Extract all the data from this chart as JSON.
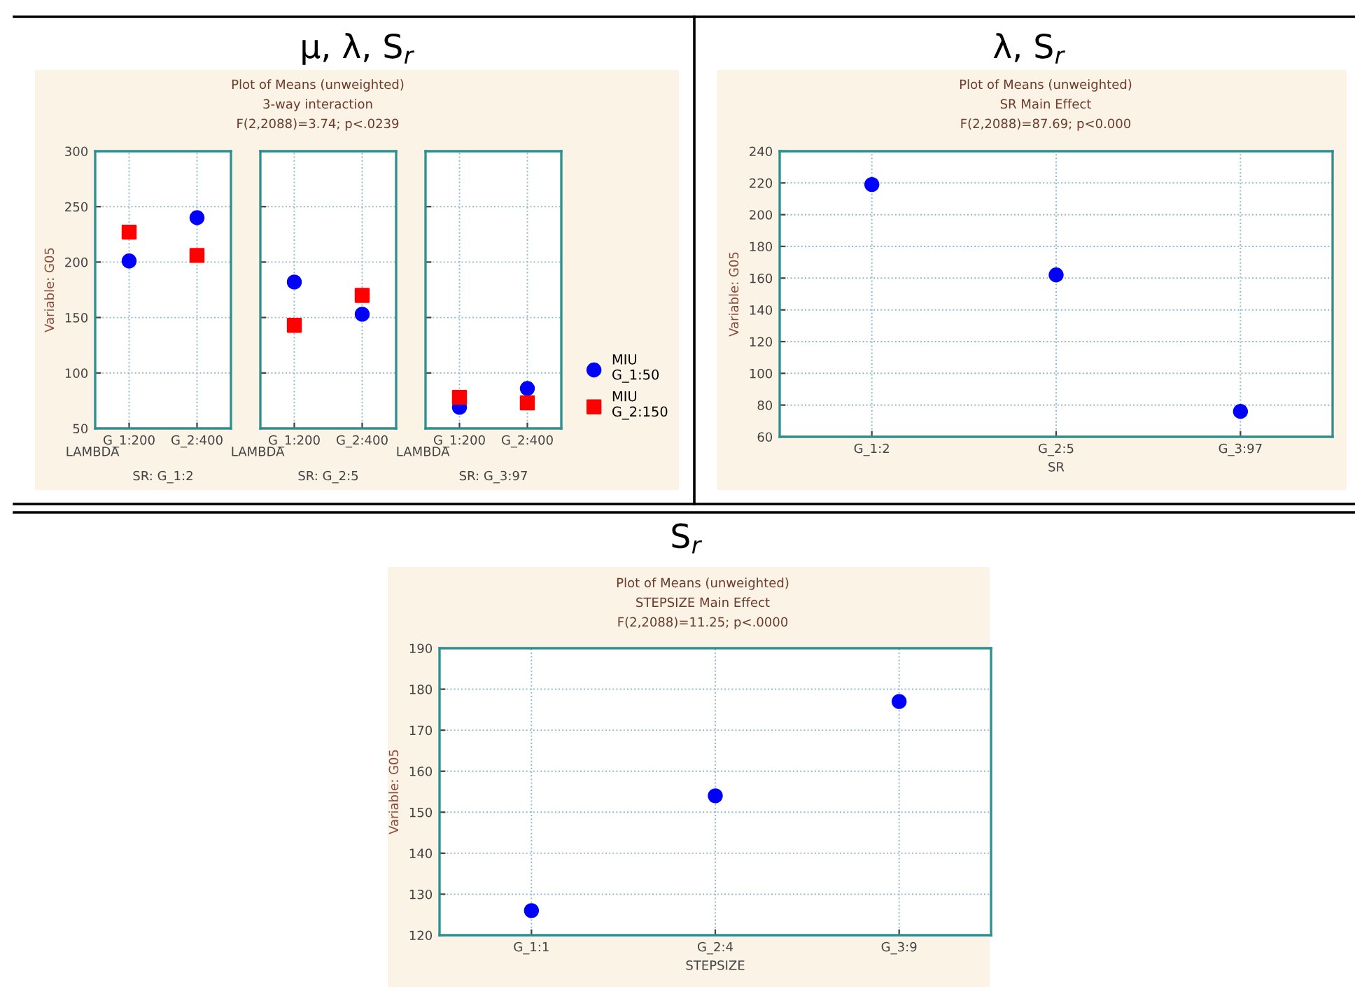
{
  "chart_data": [
    {
      "type": "scatter",
      "annotations": [
        "LAMBDA"
      ],
      "xlabel": "SR: G_1:2",
      "ylabel": "Variable: G05",
      "categories": [
        "G_1:200",
        "G_2:400"
      ],
      "series": [
        {
          "color": "#0000ff",
          "marker": "circle",
          "values": [
            201,
            240
          ]
        },
        {
          "color": "#ff0000",
          "marker": "square",
          "values": [
            227,
            206
          ]
        }
      ],
      "ylim": [
        50,
        300
      ],
      "yticks": [
        50,
        100,
        150,
        200,
        250,
        300
      ],
      "grid": true
    },
    {
      "type": "scatter",
      "title": "μ, λ, S$_{r}$",
      "subtitle": "Plot of Means (unweighted)",
      "annotations": [
        "3-way interaction",
        "F(2,2088)=3.74; p<.0239",
        "LAMBDA"
      ],
      "xlabel": "SR: G_2:5",
      "categories": [
        "G_1:200",
        "G_2:400"
      ],
      "series": [
        {
          "color": "#0000ff",
          "marker": "circle",
          "values": [
            182,
            153
          ]
        },
        {
          "color": "#ff0000",
          "marker": "square",
          "values": [
            143,
            170
          ]
        }
      ],
      "ylim": [
        50,
        300
      ],
      "yticks": [
        50,
        100,
        150,
        200,
        250,
        300
      ],
      "tick_labels": "x",
      "grid": true
    },
    {
      "type": "scatter",
      "annotations": [
        "LAMBDA"
      ],
      "xlabel": "SR: G_3:97",
      "categories": [
        "G_1:200",
        "G_2:400"
      ],
      "series": [
        {
          "name": "MIU\nG_1:50",
          "color": "#0000ff",
          "marker": "circle",
          "values": [
            69,
            86
          ]
        },
        {
          "name": "MIU\nG_2:150",
          "color": "#ff0000",
          "marker": "square",
          "values": [
            78,
            73
          ]
        }
      ],
      "ylim": [
        50,
        300
      ],
      "yticks": [
        50,
        100,
        150,
        200,
        250,
        300
      ],
      "tick_labels": "x",
      "grid": true,
      "legend": "right"
    },
    {
      "type": "scatter",
      "title": "λ, S$_{r}$",
      "subtitle": "Plot of Means (unweighted)",
      "annotations": [
        "SR Main Effect",
        "F(2,2088)=87.69; p<0.000"
      ],
      "xlabel": "SR",
      "ylabel": "Variable: G05",
      "categories": [
        "G_1:2",
        "G_2:5",
        "G_3:97"
      ],
      "series": [
        {
          "color": "#0000ff",
          "marker": "circle",
          "values": [
            219,
            162,
            76
          ]
        }
      ],
      "ylim": [
        60,
        240
      ],
      "yticks": [
        60,
        80,
        100,
        120,
        140,
        160,
        180,
        200,
        220,
        240
      ],
      "grid": true
    },
    {
      "type": "scatter",
      "title": "S$_{r}$",
      "subtitle": "Plot of Means (unweighted)",
      "annotations": [
        "STEPSIZE Main Effect",
        "F(2,2088)=11.25; p<.0000"
      ],
      "xlabel": "STEPSIZE",
      "ylabel": "Variable: G05",
      "categories": [
        "G_1:1",
        "G_2:4",
        "G_3:9"
      ],
      "series": [
        {
          "color": "#0000ff",
          "marker": "circle",
          "values": [
            126,
            154,
            177
          ]
        }
      ],
      "ylim": [
        120,
        190
      ],
      "yticks": [
        120,
        130,
        140,
        150,
        160,
        170,
        180,
        190
      ],
      "grid": true
    }
  ]
}
